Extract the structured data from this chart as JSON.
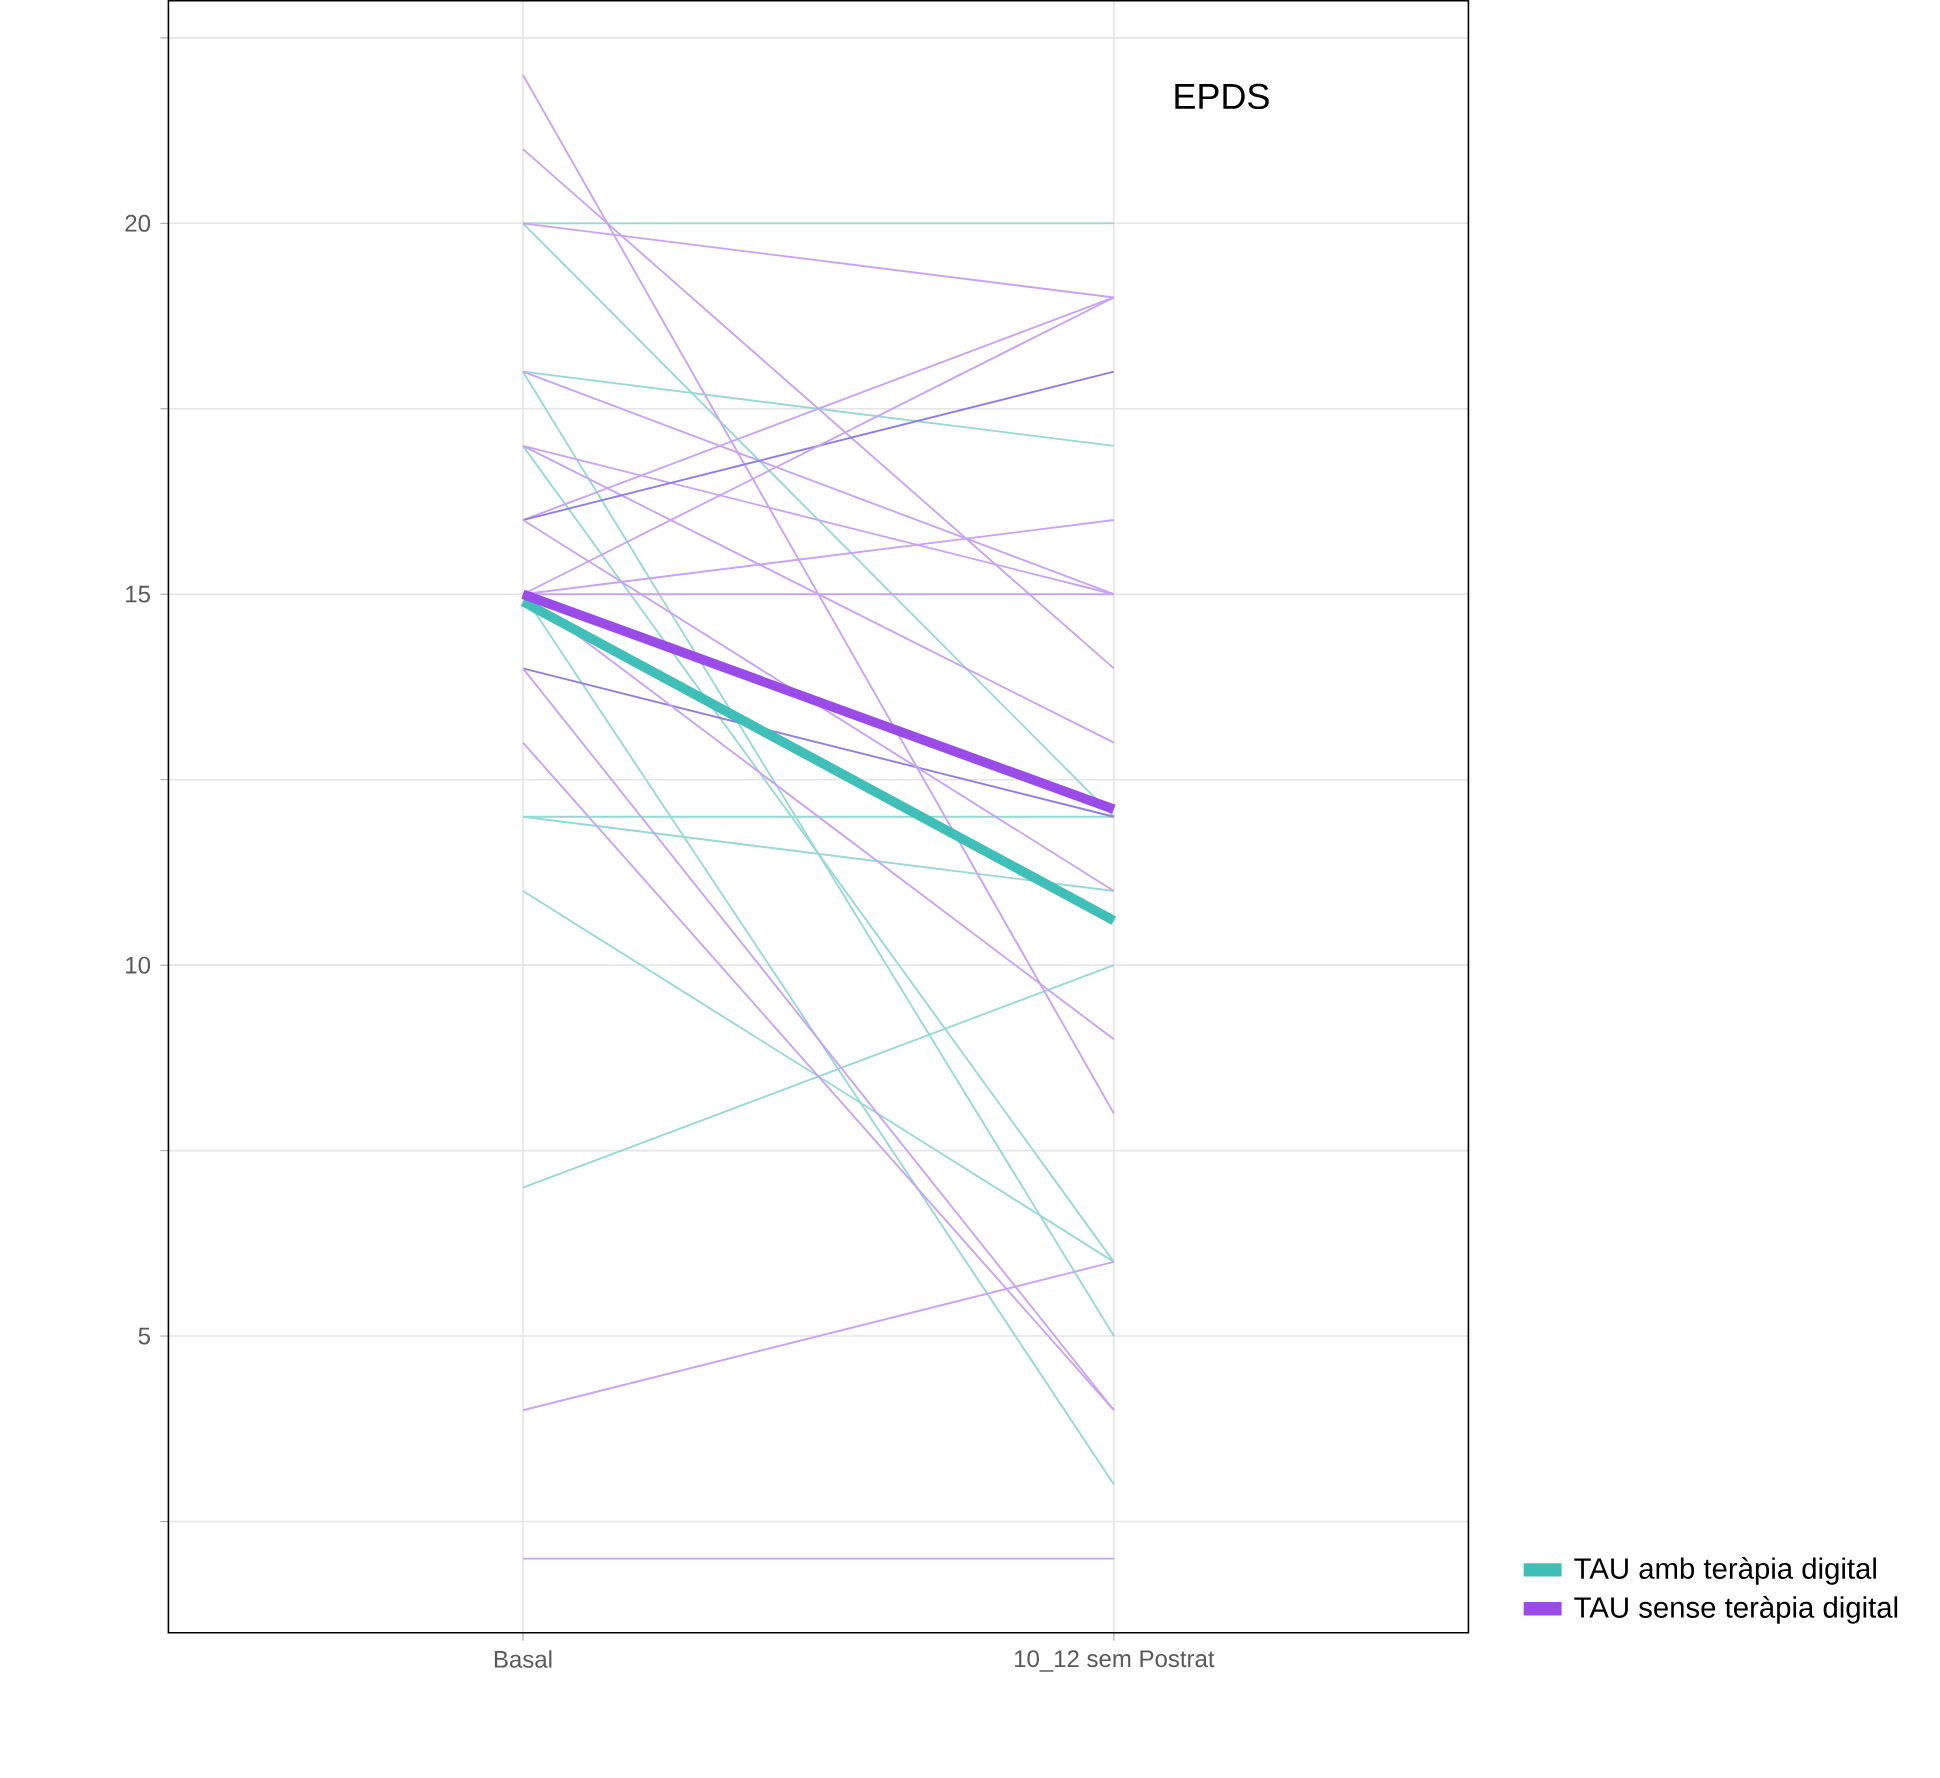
{
  "chart_data": {
    "type": "line",
    "categories": [
      "Basal",
      "10_12 sem Postrat"
    ],
    "ylim": [
      1,
      23
    ],
    "yticks": [
      {
        "value": 2.5,
        "label": null
      },
      5,
      {
        "value": 7.5,
        "label": null
      },
      10,
      {
        "value": 12.5,
        "label": null
      },
      15,
      {
        "value": 17.5,
        "label": null
      },
      20,
      {
        "value": 22.5,
        "label": null
      }
    ],
    "grid": true,
    "legend": "bottom right",
    "marker": "none",
    "line_style": "solid",
    "annotations": [
      "EPDS"
    ],
    "series": [
      {
        "color": "#95d9d4",
        "values": [
          20,
          20
        ]
      },
      {
        "color": "#95d9d4",
        "values": [
          20,
          12
        ]
      },
      {
        "color": "#95d9d4",
        "values": [
          18,
          17
        ]
      },
      {
        "color": "#95d9d4",
        "values": [
          18,
          5
        ]
      },
      {
        "color": "#95d9d4",
        "values": [
          17,
          6
        ]
      },
      {
        "color": "#95d9d4",
        "values": [
          12,
          12
        ]
      },
      {
        "color": "#95d9d4",
        "values": [
          12,
          11
        ]
      },
      {
        "color": "#95d9d4",
        "values": [
          11,
          6
        ]
      },
      {
        "color": "#95d9d4",
        "values": [
          7,
          10
        ]
      },
      {
        "color": "#95d9d4",
        "values": [
          15,
          3
        ]
      },
      {
        "color": "#c9a2f2",
        "values": [
          22,
          8
        ]
      },
      {
        "color": "#c9a2f2",
        "values": [
          21,
          14
        ]
      },
      {
        "color": "#c9a2f2",
        "values": [
          20,
          19
        ]
      },
      {
        "color": "#c9a2f2",
        "values": [
          18,
          15
        ]
      },
      {
        "color": "#c9a2f2",
        "values": [
          17,
          15
        ]
      },
      {
        "color": "#c9a2f2",
        "values": [
          17,
          13
        ]
      },
      {
        "color": "#c9a2f2",
        "values": [
          16,
          19
        ]
      },
      {
        "color": "#8f7fe0",
        "values": [
          16,
          18
        ]
      },
      {
        "color": "#c9a2f2",
        "values": [
          15,
          19
        ]
      },
      {
        "color": "#c9a2f2",
        "values": [
          15,
          16
        ]
      },
      {
        "color": "#c9a2f2",
        "values": [
          15,
          15
        ]
      },
      {
        "color": "#8f7fe0",
        "values": [
          14,
          12
        ]
      },
      {
        "color": "#c9a2f2",
        "values": [
          14,
          4
        ]
      },
      {
        "color": "#c9a2f2",
        "values": [
          13,
          4
        ]
      },
      {
        "color": "#c9a2f2",
        "values": [
          4,
          6
        ]
      },
      {
        "color": "#c9a2f2",
        "values": [
          2,
          2
        ]
      },
      {
        "color": "#c9a2f2",
        "values": [
          16,
          11
        ]
      },
      {
        "color": "#c9a2f2",
        "values": [
          15,
          9
        ]
      },
      {
        "name": "TAU amb teràpia digital",
        "color": "#40bfb8",
        "values": [
          14.9,
          10.6
        ]
      },
      {
        "name": "TAU sense teràpia digital",
        "color": "#9b4ce8",
        "values": [
          15.0,
          12.1
        ]
      }
    ]
  }
}
